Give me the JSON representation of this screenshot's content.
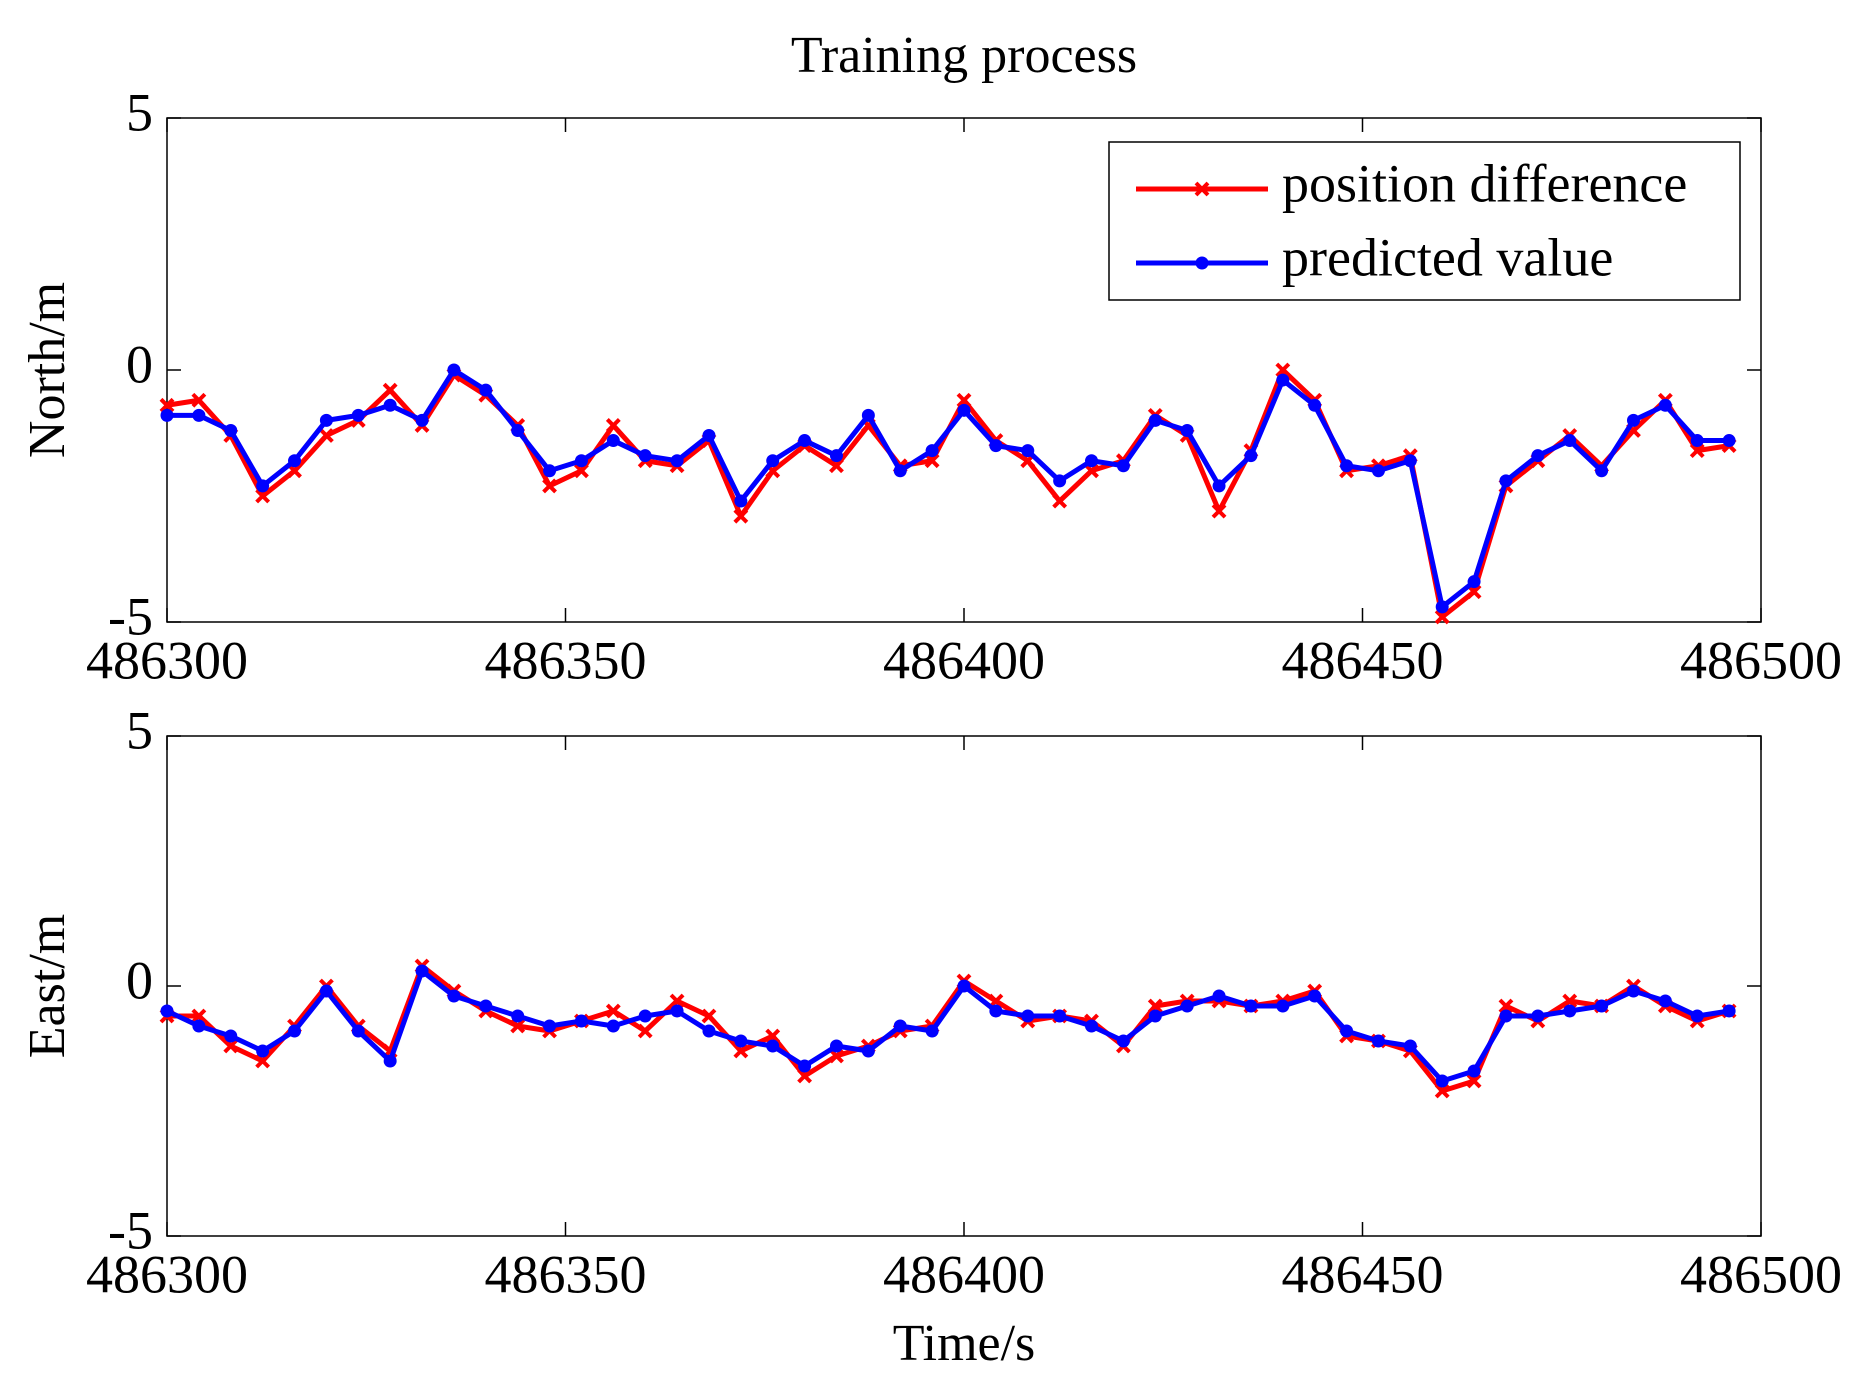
{
  "chart_data": [
    {
      "type": "line",
      "title": "Training process",
      "y_label": "North/m",
      "legend": "upper right",
      "x": [
        486300,
        486304,
        486308,
        486312,
        486316,
        486320,
        486324,
        486328,
        486332,
        486336,
        486340,
        486344,
        486348,
        486352,
        486356,
        486360,
        486364,
        486368,
        486372,
        486376,
        486380,
        486384,
        486388,
        486392,
        486396,
        486400,
        486404,
        486408,
        486412,
        486416,
        486420,
        486424,
        486428,
        486432,
        486436,
        486440,
        486444,
        486448,
        486452,
        486456,
        486460,
        486464,
        486468,
        486472,
        486476,
        486480,
        486484,
        486488,
        486492,
        486496
      ],
      "xlim": [
        486300,
        486500
      ],
      "xticks": [
        486300,
        486350,
        486400,
        486450,
        486500
      ],
      "ylim": [
        -5,
        5
      ],
      "yticks": [
        -5,
        0,
        5
      ],
      "series": [
        {
          "name": "position difference",
          "color": "#ff0000",
          "values": [
            -0.7,
            -0.6,
            -1.3,
            -2.5,
            -2.0,
            -1.3,
            -1.0,
            -0.4,
            -1.1,
            -0.1,
            -0.5,
            -1.1,
            -2.3,
            -2.0,
            -1.1,
            -1.8,
            -1.9,
            -1.4,
            -2.9,
            -2.0,
            -1.5,
            -1.9,
            -1.1,
            -1.9,
            -1.8,
            -0.6,
            -1.4,
            -1.8,
            -2.6,
            -2.0,
            -1.8,
            -0.9,
            -1.3,
            -2.8,
            -1.6,
            0.0,
            -0.6,
            -2.0,
            -1.9,
            -1.7,
            -4.9,
            -4.4,
            -2.3,
            -1.8,
            -1.3,
            -1.9,
            -1.2,
            -0.6,
            -1.6,
            -1.5
          ]
        },
        {
          "name": "predicted value",
          "color": "#0000ff",
          "values": [
            -0.9,
            -0.9,
            -1.2,
            -2.3,
            -1.8,
            -1.0,
            -0.9,
            -0.7,
            -1.0,
            0.0,
            -0.4,
            -1.2,
            -2.0,
            -1.8,
            -1.4,
            -1.7,
            -1.8,
            -1.3,
            -2.6,
            -1.8,
            -1.4,
            -1.7,
            -0.9,
            -2.0,
            -1.6,
            -0.8,
            -1.5,
            -1.6,
            -2.2,
            -1.8,
            -1.9,
            -1.0,
            -1.2,
            -2.3,
            -1.7,
            -0.2,
            -0.7,
            -1.9,
            -2.0,
            -1.8,
            -4.7,
            -4.2,
            -2.2,
            -1.7,
            -1.4,
            -2.0,
            -1.0,
            -0.7,
            -1.4,
            -1.4
          ]
        }
      ]
    },
    {
      "type": "line",
      "x_label": "Time/s",
      "y_label": "East/m",
      "x": [
        486300,
        486304,
        486308,
        486312,
        486316,
        486320,
        486324,
        486328,
        486332,
        486336,
        486340,
        486344,
        486348,
        486352,
        486356,
        486360,
        486364,
        486368,
        486372,
        486376,
        486380,
        486384,
        486388,
        486392,
        486396,
        486400,
        486404,
        486408,
        486412,
        486416,
        486420,
        486424,
        486428,
        486432,
        486436,
        486440,
        486444,
        486448,
        486452,
        486456,
        486460,
        486464,
        486468,
        486472,
        486476,
        486480,
        486484,
        486488,
        486492,
        486496
      ],
      "xlim": [
        486300,
        486500
      ],
      "xticks": [
        486300,
        486350,
        486400,
        486450,
        486500
      ],
      "ylim": [
        -5,
        5
      ],
      "yticks": [
        -5,
        0,
        5
      ],
      "series": [
        {
          "color": "#ff0000",
          "values": [
            -0.6,
            -0.6,
            -1.2,
            -1.5,
            -0.8,
            0.0,
            -0.8,
            -1.3,
            0.4,
            -0.1,
            -0.5,
            -0.8,
            -0.9,
            -0.7,
            -0.5,
            -0.9,
            -0.3,
            -0.6,
            -1.3,
            -1.0,
            -1.8,
            -1.4,
            -1.2,
            -0.9,
            -0.8,
            0.1,
            -0.3,
            -0.7,
            -0.6,
            -0.7,
            -1.2,
            -0.4,
            -0.3,
            -0.3,
            -0.4,
            -0.3,
            -0.1,
            -1.0,
            -1.1,
            -1.3,
            -2.1,
            -1.9,
            -0.4,
            -0.7,
            -0.3,
            -0.4,
            0.0,
            -0.4,
            -0.7,
            -0.5
          ]
        },
        {
          "color": "#0000ff",
          "values": [
            -0.5,
            -0.8,
            -1.0,
            -1.3,
            -0.9,
            -0.1,
            -0.9,
            -1.5,
            0.3,
            -0.2,
            -0.4,
            -0.6,
            -0.8,
            -0.7,
            -0.8,
            -0.6,
            -0.5,
            -0.9,
            -1.1,
            -1.2,
            -1.6,
            -1.2,
            -1.3,
            -0.8,
            -0.9,
            0.0,
            -0.5,
            -0.6,
            -0.6,
            -0.8,
            -1.1,
            -0.6,
            -0.4,
            -0.2,
            -0.4,
            -0.4,
            -0.2,
            -0.9,
            -1.1,
            -1.2,
            -1.9,
            -1.7,
            -0.6,
            -0.6,
            -0.5,
            -0.4,
            -0.1,
            -0.3,
            -0.6,
            -0.5
          ]
        }
      ]
    }
  ]
}
